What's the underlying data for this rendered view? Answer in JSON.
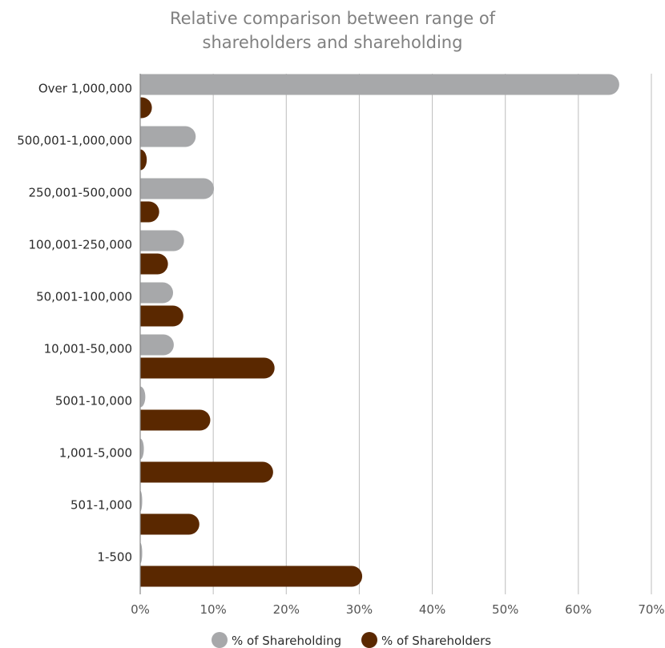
{
  "chart_data": {
    "type": "bar",
    "orientation": "horizontal",
    "title_lines": [
      "Relative comparison between range of",
      "shareholders and shareholding"
    ],
    "categories": [
      "Over 1,000,000",
      "500,001-1,000,000",
      "250,001-500,000",
      "100,001-250,000",
      "50,001-100,000",
      "10,001-50,000",
      "5001-10,000",
      "1,001-5,000",
      "501-1,000",
      "1-500"
    ],
    "series": [
      {
        "name": "% of Shareholding",
        "color": "#a7a8aa",
        "values": [
          65.6,
          7.6,
          10.1,
          6.0,
          4.5,
          4.6,
          0.7,
          0.5,
          0.1,
          0.1
        ]
      },
      {
        "name": "% of Shareholders",
        "color": "#5a2800",
        "values": [
          1.6,
          0.9,
          2.6,
          3.8,
          5.9,
          18.4,
          9.6,
          18.2,
          8.1,
          30.4
        ]
      }
    ],
    "x_ticks": [
      "0%",
      "10%",
      "20%",
      "30%",
      "40%",
      "50%",
      "60%",
      "70%"
    ],
    "xlim": [
      0,
      70
    ],
    "grid": true,
    "legend_position": "bottom"
  }
}
